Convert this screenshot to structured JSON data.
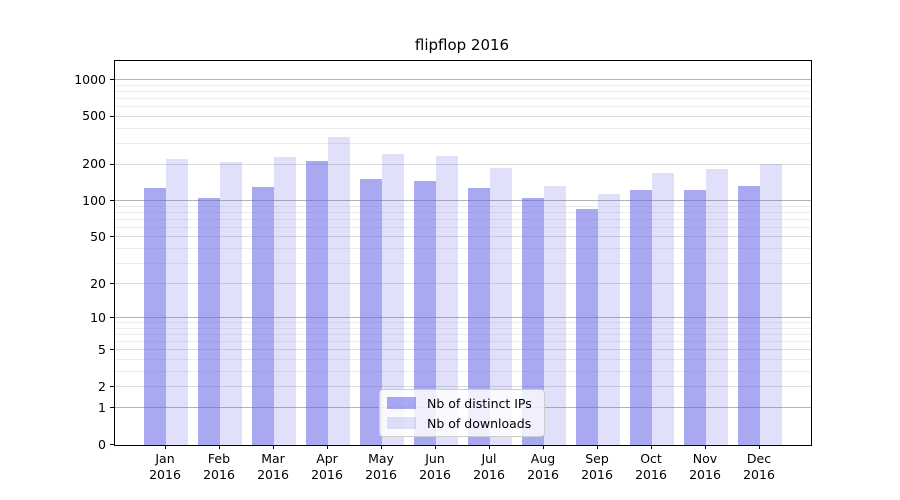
{
  "chart_data": {
    "type": "bar",
    "title": "flipflop 2016",
    "categories": [
      "Jan",
      "Feb",
      "Mar",
      "Apr",
      "May",
      "Jun",
      "Jul",
      "Aug",
      "Sep",
      "Oct",
      "Nov",
      "Dec"
    ],
    "category_year": "2016",
    "series": [
      {
        "name": "Nb of distinct IPs",
        "values": [
          130,
          107,
          131,
          217,
          154,
          148,
          130,
          107,
          87,
          123,
          123,
          135
        ],
        "fill": "rgba(99,99,230,0.55)"
      },
      {
        "name": "Nb of downloads",
        "values": [
          224,
          210,
          234,
          343,
          246,
          238,
          188,
          135,
          114,
          173,
          187,
          204
        ],
        "fill": "rgba(99,99,230,0.20)"
      }
    ],
    "xlabel": "",
    "ylabel": "",
    "y_scale": "log1p",
    "y_ticks": [
      0,
      1,
      2,
      5,
      10,
      20,
      50,
      100,
      200,
      500,
      1000
    ],
    "ylim": [
      0,
      1410
    ],
    "grid": true,
    "legend_position": "lower center",
    "colors": {
      "bar_base": "#6363e6",
      "grid_decade": "#b3b3b3",
      "grid_labeled": "#dcdcdc",
      "grid_minor": "#ededed",
      "axis": "#000000",
      "legend_border": "#cccccc"
    }
  }
}
